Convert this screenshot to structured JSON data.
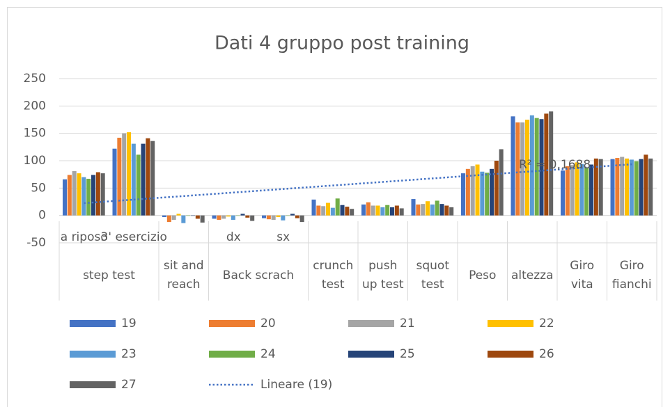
{
  "chart_data": {
    "type": "bar",
    "title": "Dati 4 gruppo post training",
    "categories": [
      "a riposo",
      "3' esercizio",
      null,
      "dx",
      "sx",
      null,
      null,
      null,
      null,
      null,
      null,
      null
    ],
    "group_labels": [
      "step test",
      null,
      "sit and reach",
      "Back scrach",
      null,
      "crunch test",
      "push up test",
      "squot test",
      "Peso",
      "altezza",
      "Giro vita",
      "Giro fianchi"
    ],
    "series": [
      {
        "name": "19",
        "color": "#4472c4",
        "values": [
          66,
          122,
          -3,
          -6,
          -5,
          29,
          20,
          30,
          77,
          181,
          82,
          103
        ],
        "trendline": {
          "type": "linear",
          "name": "Lineare (19)",
          "color": "#4472c4",
          "r2_label": "R² = 0,1688"
        }
      },
      {
        "name": "20",
        "color": "#ed7d31",
        "values": [
          74,
          142,
          -12,
          -8,
          -7,
          18,
          24,
          20,
          85,
          170,
          90,
          105
        ]
      },
      {
        "name": "21",
        "color": "#a5a5a5",
        "values": [
          81,
          150,
          -8,
          -6,
          -8,
          17,
          18,
          21,
          90,
          170,
          92,
          107
        ]
      },
      {
        "name": "22",
        "color": "#ffc000",
        "values": [
          77,
          152,
          3,
          -2,
          -3,
          23,
          18,
          26,
          93,
          175,
          97,
          104
        ]
      },
      {
        "name": "23",
        "color": "#5b9bd5",
        "values": [
          70,
          131,
          -14,
          -8,
          -9,
          14,
          15,
          20,
          80,
          183,
          94,
          102
        ]
      },
      {
        "name": "24",
        "color": "#70ad47",
        "values": [
          67,
          111,
          0,
          0,
          0,
          31,
          19,
          27,
          78,
          178,
          88,
          99
        ]
      },
      {
        "name": "25",
        "color": "#264478",
        "values": [
          74,
          131,
          0,
          3,
          3,
          19,
          15,
          21,
          85,
          176,
          93,
          103
        ]
      },
      {
        "name": "26",
        "color": "#9e480e",
        "values": [
          79,
          141,
          -6,
          -4,
          -5,
          16,
          18,
          18,
          100,
          186,
          104,
          111
        ]
      },
      {
        "name": "27",
        "color": "#636363",
        "values": [
          77,
          136,
          -13,
          -10,
          -12,
          12,
          13,
          15,
          121,
          190,
          103,
          104
        ]
      }
    ],
    "ylim": [
      -50,
      250
    ],
    "yticks": [
      -50,
      0,
      50,
      100,
      150,
      200,
      250
    ],
    "grid": true
  }
}
